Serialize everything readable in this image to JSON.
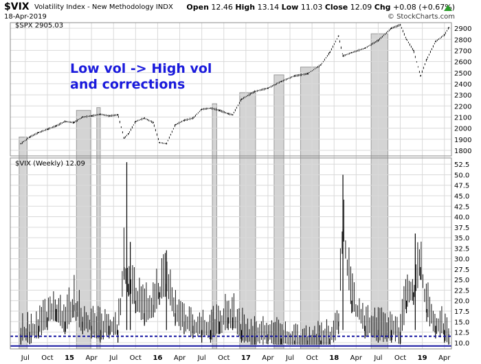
{
  "header": {
    "symbol": "$VIX",
    "description": "Volatility Index - New Methodology  INDX",
    "date": "18-Apr-2019",
    "credit": "© StockCharts.com",
    "open_label": "Open",
    "open": "12.46",
    "high_label": "High",
    "high": "13.14",
    "low_label": "Low",
    "low": "11.03",
    "close_label": "Close",
    "close": "12.09",
    "chg_label": "Chg",
    "chg": "+0.08 (+0.67%)",
    "up_color": "#2a9d2a"
  },
  "annotation": [
    "Low vol -> High vol",
    "and corrections"
  ],
  "annotation_color": "#1a1adc",
  "chart_data": [
    {
      "type": "line",
      "legend": "$SPX 2905.03",
      "ylim": [
        1750,
        2950
      ],
      "yticks": [
        1800,
        1900,
        2000,
        2100,
        2200,
        2300,
        2400,
        2500,
        2600,
        2700,
        2800,
        2900
      ],
      "x": [
        2014.45,
        2014.55,
        2014.65,
        2014.75,
        2014.85,
        2014.95,
        2015.05,
        2015.15,
        2015.25,
        2015.35,
        2015.45,
        2015.55,
        2015.62,
        2015.67,
        2015.75,
        2015.85,
        2015.95,
        2016.02,
        2016.1,
        2016.2,
        2016.3,
        2016.4,
        2016.5,
        2016.6,
        2016.7,
        2016.8,
        2016.85,
        2016.95,
        2017.1,
        2017.25,
        2017.4,
        2017.55,
        2017.7,
        2017.85,
        2017.95,
        2018.05,
        2018.1,
        2018.2,
        2018.35,
        2018.5,
        2018.65,
        2018.75,
        2018.82,
        2018.9,
        2018.98,
        2019.05,
        2019.15,
        2019.25,
        2019.3
      ],
      "values": [
        1860,
        1920,
        1960,
        1990,
        2020,
        2060,
        2050,
        2100,
        2110,
        2125,
        2110,
        2120,
        1910,
        1950,
        2060,
        2090,
        2050,
        1870,
        1860,
        2030,
        2070,
        2090,
        2170,
        2180,
        2160,
        2130,
        2120,
        2260,
        2330,
        2360,
        2420,
        2470,
        2490,
        2570,
        2680,
        2830,
        2650,
        2680,
        2720,
        2790,
        2900,
        2930,
        2800,
        2700,
        2470,
        2620,
        2780,
        2840,
        2905
      ]
    },
    {
      "type": "bar",
      "legend": "$VIX (Weekly) 12.09",
      "ylim": [
        8.5,
        54
      ],
      "yticks": [
        10.0,
        12.5,
        15.0,
        17.5,
        20.0,
        22.5,
        25.0,
        27.5,
        30.0,
        32.5,
        35.0,
        37.5,
        40.0,
        42.5,
        45.0,
        47.5,
        50.0,
        52.5
      ],
      "hlines": [
        {
          "value": 11.5,
          "style": "dashed",
          "color": "#1414a0"
        },
        {
          "value": 9.2,
          "style": "solid",
          "color": "#1414a0"
        }
      ],
      "x": [
        2014.45,
        2014.55,
        2014.65,
        2014.75,
        2014.85,
        2014.95,
        2015.05,
        2015.15,
        2015.25,
        2015.35,
        2015.45,
        2015.55,
        2015.62,
        2015.67,
        2015.75,
        2015.85,
        2015.95,
        2016.02,
        2016.1,
        2016.2,
        2016.3,
        2016.4,
        2016.5,
        2016.6,
        2016.7,
        2016.8,
        2016.85,
        2016.95,
        2017.1,
        2017.25,
        2017.4,
        2017.55,
        2017.7,
        2017.85,
        2017.95,
        2018.05,
        2018.1,
        2018.2,
        2018.35,
        2018.5,
        2018.65,
        2018.75,
        2018.82,
        2018.9,
        2018.98,
        2019.05,
        2019.15,
        2019.25,
        2019.3
      ],
      "values": [
        12,
        12.5,
        14,
        16,
        18,
        15,
        19,
        15,
        14,
        13,
        14,
        13,
        28,
        24,
        20,
        17,
        19,
        22,
        24,
        17,
        15,
        14,
        13,
        13,
        15,
        16,
        16,
        13,
        11.5,
        12,
        11,
        10.5,
        10.5,
        10.5,
        11,
        15,
        37,
        20,
        14,
        13,
        13,
        12.5,
        20,
        22,
        28,
        18,
        14,
        13,
        12.1
      ]
    }
  ],
  "x_axis_labels": [
    "Jul",
    "Oct",
    "15",
    "Apr",
    "Jul",
    "Oct",
    "16",
    "Apr",
    "Jul",
    "Oct",
    "17",
    "Apr",
    "Jul",
    "Oct",
    "18",
    "Apr",
    "Jul",
    "Oct",
    "19",
    "Apr"
  ],
  "x_axis_positions": [
    2014.5,
    2014.75,
    2015.0,
    2015.25,
    2015.5,
    2015.75,
    2016.0,
    2016.25,
    2016.5,
    2016.75,
    2017.0,
    2017.25,
    2017.5,
    2017.75,
    2018.0,
    2018.25,
    2018.5,
    2018.75,
    2019.0,
    2019.25
  ],
  "shaded_periods": [
    [
      2014.43,
      2014.52
    ],
    [
      2015.08,
      2015.24
    ],
    [
      2015.31,
      2015.35
    ],
    [
      2016.62,
      2016.67
    ],
    [
      2016.93,
      2017.11
    ],
    [
      2017.32,
      2017.43
    ],
    [
      2017.62,
      2017.83
    ],
    [
      2018.42,
      2018.61
    ]
  ]
}
